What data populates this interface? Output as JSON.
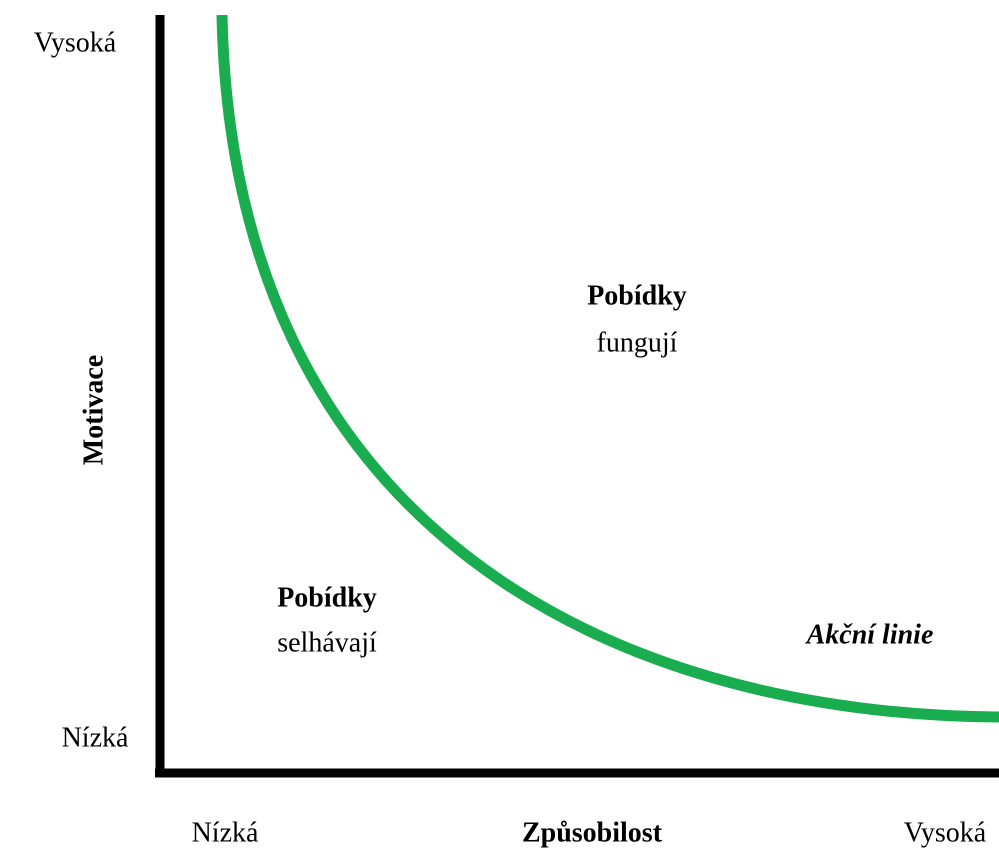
{
  "y_axis": {
    "label": "Motivace",
    "high": "Vysoká",
    "low": "Nízká"
  },
  "x_axis": {
    "label": "Způsobilost",
    "low": "Nízká",
    "high": "Vysoká"
  },
  "regions": [
    {
      "title": "Pobídky",
      "text": "fungují"
    },
    {
      "title": "Pobídky",
      "text": "selhávají"
    }
  ],
  "curve_label": "Akční linie"
}
